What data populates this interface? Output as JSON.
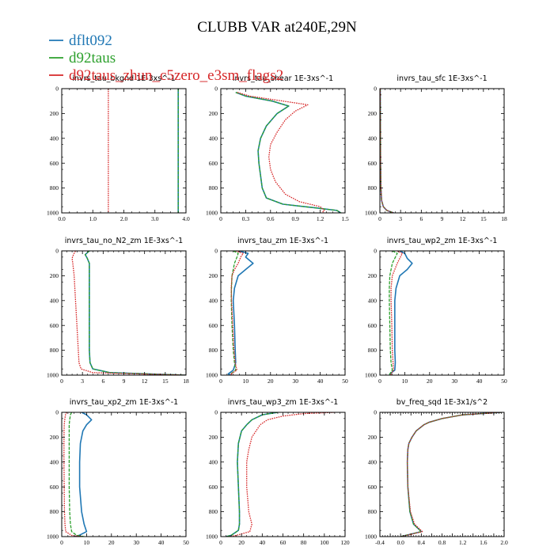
{
  "figure_title": "CLUBB VAR at240E,29N",
  "colors": {
    "dflt092": "#1f77b4",
    "d92taus": "#2ca02c",
    "d92taus_zhun": "#d62728"
  },
  "legend": [
    {
      "name": "dflt092",
      "color": "#1f77b4"
    },
    {
      "name": "d92taus",
      "color": "#2ca02c"
    },
    {
      "name": "d92taus_zhun_c5zero_e3sm_flags2",
      "color": "#d62728"
    }
  ],
  "chart_data": [
    {
      "type": "line",
      "title": "invrs_tau_bkgnd   1E-3xs^-1",
      "xlim": [
        0,
        4
      ],
      "ylim": [
        1000,
        0
      ],
      "xticks": [
        0,
        1,
        2,
        3,
        4
      ],
      "xtick_labels": [
        "0.0",
        "1.0",
        "2.0",
        "3.0",
        "4.0"
      ],
      "yticks": [
        0,
        200,
        400,
        600,
        800,
        1000
      ],
      "series": [
        {
          "name": "dflt092",
          "y": [
            0,
            1000
          ],
          "x": [
            3.75,
            3.75
          ]
        },
        {
          "name": "d92taus",
          "y": [
            0,
            1000
          ],
          "x": [
            3.75,
            3.75
          ]
        },
        {
          "name": "d92taus_zhun_c5zero_e3sm_flags2",
          "y": [
            0,
            1000
          ],
          "x": [
            1.5,
            1.5
          ]
        }
      ]
    },
    {
      "type": "line",
      "title": "invrs_tau_shear   1E-3xs^-1",
      "xlim": [
        0,
        1.5
      ],
      "ylim": [
        1000,
        0
      ],
      "xticks": [
        0,
        0.3,
        0.6,
        0.9,
        1.2,
        1.5
      ],
      "xtick_labels": [
        "0",
        "0.3",
        "0.6",
        "0.9",
        "1.2",
        "1.5"
      ],
      "yticks": [
        0,
        200,
        400,
        600,
        800,
        1000
      ],
      "series": [
        {
          "name": "dflt092",
          "y": [
            30,
            60,
            100,
            140,
            200,
            300,
            400,
            500,
            600,
            700,
            800,
            880,
            930,
            960,
            980,
            1000
          ],
          "x": [
            0.18,
            0.3,
            0.62,
            0.82,
            0.68,
            0.55,
            0.48,
            0.45,
            0.46,
            0.48,
            0.5,
            0.55,
            0.75,
            1.15,
            1.4,
            1.45
          ]
        },
        {
          "name": "d92taus",
          "y": [
            30,
            60,
            100,
            140,
            200,
            300,
            400,
            500,
            600,
            700,
            800,
            880,
            930,
            960,
            980,
            1000
          ],
          "x": [
            0.18,
            0.3,
            0.62,
            0.82,
            0.68,
            0.55,
            0.48,
            0.45,
            0.46,
            0.48,
            0.5,
            0.55,
            0.75,
            1.15,
            1.4,
            1.45
          ]
        },
        {
          "name": "d92taus_zhun_c5zero_e3sm_flags2",
          "y": [
            30,
            60,
            100,
            130,
            180,
            250,
            350,
            450,
            550,
            650,
            750,
            850,
            910,
            950,
            980,
            1000
          ],
          "x": [
            0.2,
            0.35,
            0.75,
            1.05,
            0.9,
            0.78,
            0.68,
            0.6,
            0.58,
            0.6,
            0.66,
            0.78,
            0.95,
            1.2,
            1.25,
            1.22
          ]
        }
      ]
    },
    {
      "type": "line",
      "title": "invrs_tau_sfc   1E-3xs^-1",
      "xlim": [
        0,
        18
      ],
      "ylim": [
        1000,
        0
      ],
      "xticks": [
        0,
        3,
        6,
        9,
        12,
        15,
        18
      ],
      "xtick_labels": [
        "0",
        "3",
        "6",
        "9",
        "12",
        "15",
        "18"
      ],
      "yticks": [
        0,
        200,
        400,
        600,
        800,
        1000
      ],
      "series": [
        {
          "name": "dflt092",
          "y": [
            0,
            600,
            800,
            900,
            950,
            980,
            1000
          ],
          "x": [
            0.05,
            0.1,
            0.15,
            0.25,
            0.5,
            1.0,
            2.0
          ]
        },
        {
          "name": "d92taus",
          "y": [
            0,
            600,
            800,
            900,
            950,
            980,
            1000
          ],
          "x": [
            0.05,
            0.1,
            0.15,
            0.25,
            0.5,
            1.0,
            2.0
          ]
        },
        {
          "name": "d92taus_zhun_c5zero_e3sm_flags2",
          "y": [
            0,
            600,
            800,
            900,
            950,
            980,
            1000
          ],
          "x": [
            0.05,
            0.1,
            0.15,
            0.25,
            0.5,
            1.0,
            2.0
          ]
        }
      ]
    },
    {
      "type": "line",
      "title": "invrs_tau_no_N2_zm   1E-3xs^-1",
      "xlim": [
        0,
        18
      ],
      "ylim": [
        1000,
        0
      ],
      "xticks": [
        0,
        3,
        6,
        9,
        12,
        15,
        18
      ],
      "xtick_labels": [
        "0",
        "3",
        "6",
        "9",
        "12",
        "15",
        "18"
      ],
      "yticks": [
        0,
        200,
        400,
        600,
        800,
        1000
      ],
      "series": [
        {
          "name": "dflt092",
          "y": [
            0,
            30,
            60,
            100,
            200,
            400,
            600,
            800,
            900,
            950,
            980,
            1000
          ],
          "x": [
            4,
            3.4,
            3.7,
            4.0,
            4.0,
            4.0,
            4.0,
            4.0,
            4.1,
            4.5,
            7.0,
            18
          ]
        },
        {
          "name": "d92taus",
          "y": [
            0,
            30,
            60,
            100,
            200,
            400,
            600,
            800,
            900,
            950,
            980,
            1000
          ],
          "x": [
            4,
            3.4,
            3.7,
            4.0,
            4.0,
            4.0,
            4.0,
            4.0,
            4.1,
            4.5,
            7.0,
            18
          ]
        },
        {
          "name": "d92taus_zhun_c5zero_e3sm_flags2",
          "y": [
            0,
            30,
            60,
            100,
            200,
            400,
            600,
            800,
            900,
            950,
            980,
            1000
          ],
          "x": [
            2.0,
            1.7,
            1.5,
            1.6,
            1.8,
            2.0,
            2.2,
            2.4,
            2.5,
            2.8,
            4.5,
            18
          ]
        }
      ]
    },
    {
      "type": "line",
      "title": "invrs_tau_zm   1E-3xs^-1",
      "xlim": [
        0,
        50
      ],
      "ylim": [
        1000,
        0
      ],
      "xticks": [
        0,
        10,
        20,
        30,
        40,
        50
      ],
      "xtick_labels": [
        "0",
        "10",
        "20",
        "30",
        "40",
        "50"
      ],
      "yticks": [
        0,
        200,
        400,
        600,
        800,
        1000
      ],
      "series": [
        {
          "name": "dflt092",
          "y": [
            0,
            20,
            50,
            100,
            150,
            200,
            300,
            400,
            600,
            800,
            900,
            960,
            990,
            1000
          ],
          "x": [
            7,
            11,
            10,
            13,
            10,
            7,
            5.5,
            5,
            5.5,
            5.8,
            6,
            5,
            3,
            4
          ]
        },
        {
          "name": "d92taus",
          "y": [
            0,
            20,
            50,
            100,
            150,
            200,
            300,
            400,
            600,
            800,
            900,
            960,
            990,
            1000
          ],
          "x": [
            5,
            7,
            6.5,
            5.5,
            5,
            4.5,
            4.3,
            4.2,
            4.5,
            5,
            5.5,
            6,
            4,
            4
          ]
        },
        {
          "name": "d92taus_zhun_c5zero_e3sm_flags2",
          "y": [
            0,
            20,
            50,
            100,
            150,
            200,
            300,
            400,
            600,
            800,
            900,
            960,
            990,
            1000
          ],
          "x": [
            6,
            9,
            8,
            7,
            5.5,
            4.5,
            4.2,
            4.3,
            4.8,
            5.3,
            5.8,
            6.5,
            4,
            4.5
          ]
        }
      ]
    },
    {
      "type": "line",
      "title": "invrs_tau_wp2_zm   1E-3xs^-1",
      "xlim": [
        0,
        50
      ],
      "ylim": [
        1000,
        0
      ],
      "xticks": [
        0,
        10,
        20,
        30,
        40,
        50
      ],
      "xtick_labels": [
        "0",
        "10",
        "20",
        "30",
        "40",
        "50"
      ],
      "yticks": [
        0,
        200,
        400,
        600,
        800,
        1000
      ],
      "series": [
        {
          "name": "dflt092",
          "y": [
            0,
            20,
            60,
            100,
            150,
            200,
            300,
            400,
            600,
            800,
            900,
            960,
            990,
            1000
          ],
          "x": [
            8,
            10,
            11,
            13,
            11,
            8,
            6.5,
            6,
            6,
            6,
            6.2,
            6,
            4,
            4
          ]
        },
        {
          "name": "d92taus",
          "y": [
            0,
            20,
            60,
            100,
            150,
            200,
            300,
            400,
            600,
            800,
            900,
            960,
            990,
            1000
          ],
          "x": [
            5,
            7,
            6,
            5,
            4.5,
            4,
            3.8,
            3.8,
            4,
            4.2,
            4.5,
            5,
            4,
            4
          ]
        },
        {
          "name": "d92taus_zhun_c5zero_e3sm_flags2",
          "y": [
            0,
            20,
            60,
            100,
            150,
            200,
            300,
            400,
            600,
            800,
            900,
            960,
            990,
            1000
          ],
          "x": [
            7,
            9,
            8,
            7,
            6,
            5,
            4.5,
            4.5,
            4.8,
            5,
            5.3,
            5.5,
            4.5,
            4.5
          ]
        }
      ]
    },
    {
      "type": "line",
      "title": "invrs_tau_xp2_zm   1E-3xs^-1",
      "xlim": [
        0,
        50
      ],
      "ylim": [
        1000,
        0
      ],
      "xticks": [
        0,
        10,
        20,
        30,
        40,
        50
      ],
      "xtick_labels": [
        "0",
        "10",
        "20",
        "30",
        "40",
        "50"
      ],
      "yticks": [
        0,
        200,
        400,
        600,
        800,
        1000
      ],
      "series": [
        {
          "name": "dflt092",
          "y": [
            0,
            20,
            60,
            100,
            150,
            250,
            400,
            600,
            800,
            900,
            960,
            990,
            1000
          ],
          "x": [
            8,
            10,
            12,
            10,
            8.5,
            7.5,
            7.2,
            7.2,
            8,
            9,
            10,
            7,
            5
          ]
        },
        {
          "name": "d92taus",
          "y": [
            0,
            20,
            60,
            100,
            200,
            400,
            600,
            800,
            900,
            960,
            990,
            1000
          ],
          "x": [
            4,
            3.5,
            3.2,
            3,
            3,
            3,
            3,
            3.2,
            3.5,
            4,
            6,
            9
          ]
        },
        {
          "name": "d92taus_zhun_c5zero_e3sm_flags2",
          "y": [
            0,
            20,
            60,
            100,
            200,
            400,
            600,
            800,
            900,
            960,
            990,
            1000
          ],
          "x": [
            2,
            1.5,
            1.2,
            1,
            0.9,
            0.9,
            1,
            1.1,
            1.3,
            1.6,
            4,
            8
          ]
        }
      ]
    },
    {
      "type": "line",
      "title": "invrs_tau_wp3_zm   1E-3xs^-1",
      "xlim": [
        0,
        120
      ],
      "ylim": [
        1000,
        0
      ],
      "xticks": [
        0,
        20,
        40,
        60,
        80,
        100,
        120
      ],
      "xtick_labels": [
        "0",
        "20",
        "40",
        "60",
        "80",
        "100",
        "120"
      ],
      "yticks": [
        0,
        200,
        400,
        600,
        800,
        1000
      ],
      "series": [
        {
          "name": "dflt092",
          "y": [
            0,
            20,
            60,
            100,
            150,
            250,
            400,
            600,
            800,
            900,
            950,
            990,
            1000
          ],
          "x": [
            55,
            40,
            30,
            25,
            20,
            17,
            16,
            17,
            18,
            18,
            17,
            10,
            5
          ]
        },
        {
          "name": "d92taus",
          "y": [
            0,
            20,
            60,
            100,
            150,
            250,
            400,
            600,
            800,
            900,
            950,
            990,
            1000
          ],
          "x": [
            55,
            40,
            30,
            25,
            20,
            17,
            16,
            17,
            18,
            18,
            17,
            10,
            5
          ]
        },
        {
          "name": "d92taus_zhun_c5zero_e3sm_flags2",
          "y": [
            0,
            10,
            30,
            60,
            100,
            200,
            300,
            400,
            600,
            800,
            900,
            960,
            990,
            1000
          ],
          "x": [
            110,
            80,
            60,
            45,
            38,
            30,
            27,
            25,
            25,
            27,
            30,
            28,
            15,
            8
          ]
        }
      ]
    },
    {
      "type": "line",
      "title": "bv_freq_sqd   1E-3x1/s^2",
      "xlim": [
        -0.4,
        2.0
      ],
      "ylim": [
        1000,
        0
      ],
      "xticks": [
        -0.4,
        -0.2,
        0,
        0.2,
        0.4,
        0.6,
        0.8,
        1.0,
        1.2,
        1.4,
        1.6,
        1.8,
        2.0
      ],
      "xtick_labels": [
        "-0.4",
        "",
        "0.0",
        "",
        "0.4",
        "",
        "0.8",
        "",
        "1.2",
        "",
        "1.6",
        "",
        "2.0"
      ],
      "yticks": [
        0,
        200,
        400,
        600,
        800,
        1000
      ],
      "series": [
        {
          "name": "dflt092",
          "y": [
            0,
            20,
            50,
            80,
            100,
            150,
            200,
            250,
            300,
            400,
            600,
            800,
            900,
            940,
            960,
            980,
            1000
          ],
          "x": [
            1.95,
            1.2,
            0.8,
            0.55,
            0.45,
            0.3,
            0.22,
            0.16,
            0.14,
            0.13,
            0.14,
            0.18,
            0.25,
            0.35,
            0.4,
            0.2,
            0.0
          ]
        },
        {
          "name": "d92taus",
          "y": [
            0,
            20,
            50,
            80,
            100,
            150,
            200,
            250,
            300,
            400,
            600,
            800,
            900,
            940,
            960,
            980,
            1000
          ],
          "x": [
            1.95,
            1.2,
            0.8,
            0.55,
            0.45,
            0.3,
            0.22,
            0.16,
            0.14,
            0.13,
            0.14,
            0.18,
            0.25,
            0.35,
            0.4,
            0.2,
            0.0
          ]
        },
        {
          "name": "d92taus_zhun_c5zero_e3sm_flags2",
          "y": [
            0,
            20,
            50,
            80,
            100,
            150,
            200,
            250,
            300,
            400,
            600,
            800,
            900,
            940,
            960,
            980,
            1000
          ],
          "x": [
            1.95,
            1.2,
            0.8,
            0.55,
            0.45,
            0.3,
            0.22,
            0.16,
            0.14,
            0.13,
            0.14,
            0.19,
            0.27,
            0.37,
            0.42,
            0.22,
            0.0
          ]
        }
      ]
    }
  ]
}
